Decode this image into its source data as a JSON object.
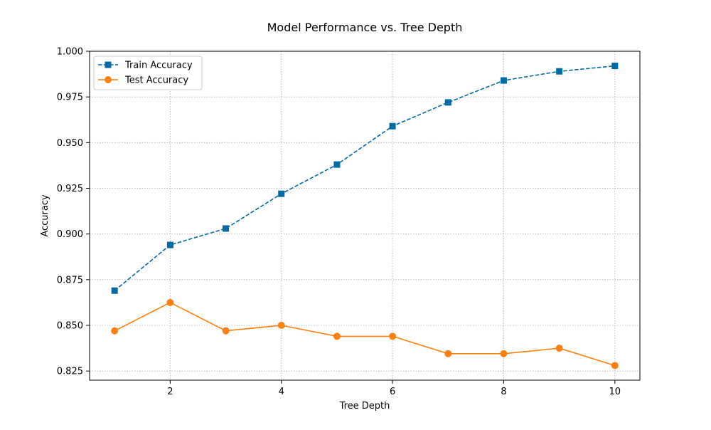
{
  "chart_data": {
    "type": "line",
    "title": "Model Performance vs. Tree Depth",
    "xlabel": "Tree Depth",
    "ylabel": "Accuracy",
    "xlim": [
      0.55,
      10.45
    ],
    "ylim": [
      0.82,
      1.0
    ],
    "xticks": [
      2,
      4,
      6,
      8,
      10
    ],
    "xtick_labels": [
      "2",
      "4",
      "6",
      "8",
      "10"
    ],
    "yticks": [
      0.825,
      0.85,
      0.875,
      0.9,
      0.925,
      0.95,
      0.975,
      1.0
    ],
    "ytick_labels": [
      "0.825",
      "0.850",
      "0.875",
      "0.900",
      "0.925",
      "0.950",
      "0.975",
      "1.000"
    ],
    "grid": true,
    "legend_position": "top-left",
    "x": [
      1,
      2,
      3,
      4,
      5,
      6,
      7,
      8,
      9,
      10
    ],
    "series": [
      {
        "name": "Train Accuracy",
        "values": [
          0.869,
          0.894,
          0.903,
          0.922,
          0.938,
          0.959,
          0.972,
          0.984,
          0.989,
          0.992
        ],
        "color": "#006BA4",
        "line_style": "dashed",
        "marker": "square"
      },
      {
        "name": "Test Accuracy",
        "values": [
          0.847,
          0.8625,
          0.847,
          0.85,
          0.844,
          0.844,
          0.8345,
          0.8345,
          0.8375,
          0.828
        ],
        "color": "#FF800E",
        "line_style": "solid",
        "marker": "circle"
      }
    ]
  }
}
